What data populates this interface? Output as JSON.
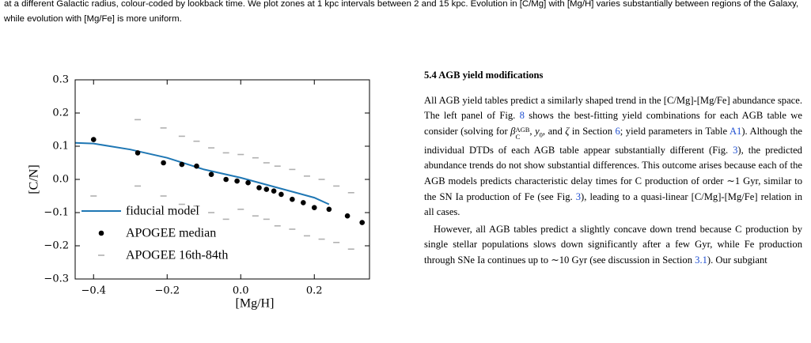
{
  "caption": "at a different Galactic radius, colour-coded by lookback time. We plot zones at 1 kpc intervals between 2 and 15 kpc. Evolution in [C/Mg] with [Mg/H] varies substantially between regions of the Galaxy, while evolution with [Mg/Fe] is more uniform.",
  "chart_data": {
    "type": "line",
    "xlabel": "[Mg/H]",
    "ylabel": "[C/N]",
    "xlim": [
      -0.45,
      0.35
    ],
    "ylim": [
      -0.3,
      0.3
    ],
    "xticks": [
      {
        "value": -0.4,
        "label": "−0.4"
      },
      {
        "value": -0.2,
        "label": "−0.2"
      },
      {
        "value": 0.0,
        "label": "0.0"
      },
      0.2
    ],
    "yticks": [
      {
        "value": -0.3,
        "label": "−0.3"
      },
      {
        "value": -0.2,
        "label": "−0.2"
      },
      {
        "value": -0.1,
        "label": "−0.1"
      },
      {
        "value": 0.0,
        "label": "0.0"
      },
      0.1,
      0.2,
      0.3
    ],
    "legend": "lower left",
    "series": [
      {
        "name": "fiducial model",
        "type": "line",
        "color": "#1f77b4",
        "x": [
          -0.45,
          -0.4,
          -0.3,
          -0.2,
          -0.1,
          0.0,
          0.1,
          0.2,
          0.24
        ],
        "values": [
          0.11,
          0.108,
          0.09,
          0.065,
          0.03,
          0.005,
          -0.025,
          -0.055,
          -0.075
        ]
      },
      {
        "name": "APOGEE median",
        "type": "scatter",
        "color": "#000000",
        "x": [
          -0.4,
          -0.28,
          -0.21,
          -0.16,
          -0.12,
          -0.08,
          -0.04,
          -0.01,
          0.02,
          0.05,
          0.07,
          0.09,
          0.11,
          0.14,
          0.17,
          0.2,
          0.24,
          0.29,
          0.33
        ],
        "values": [
          0.12,
          0.08,
          0.05,
          0.045,
          0.04,
          0.015,
          0.0,
          -0.005,
          -0.01,
          -0.025,
          -0.03,
          -0.035,
          -0.045,
          -0.06,
          -0.07,
          -0.085,
          -0.09,
          -0.11,
          -0.13
        ]
      },
      {
        "name": "APOGEE 16th-84th",
        "type": "range",
        "color": "#b0b0b0",
        "x": [
          -0.4,
          -0.28,
          -0.21,
          -0.16,
          -0.12,
          -0.08,
          -0.04,
          0.0,
          0.04,
          0.07,
          0.1,
          0.14,
          0.18,
          0.22,
          0.26,
          0.3
        ],
        "high": [
          null,
          0.18,
          0.155,
          0.13,
          0.115,
          0.095,
          0.08,
          0.075,
          0.065,
          0.05,
          0.04,
          0.03,
          0.01,
          0.0,
          -0.02,
          -0.04
        ],
        "low": [
          -0.05,
          -0.02,
          -0.05,
          -0.075,
          -0.08,
          -0.1,
          -0.12,
          -0.09,
          -0.11,
          -0.12,
          -0.14,
          -0.15,
          -0.17,
          -0.18,
          -0.19,
          -0.21
        ]
      }
    ]
  },
  "section": {
    "heading": "5.4  AGB yield modifications",
    "paragraphs": [
      [
        "All AGB yield tables predict a similarly shaped trend in the [C/Mg]-[Mg/Fe] abundance space. The left panel of Fig. ",
        "8",
        " shows the best-fitting yield combinations for each AGB table we consider (solving for ",
        "β",
        "C",
        "AGB",
        ", ",
        "y",
        "0",
        ", and ",
        "ζ",
        " in Section ",
        "6",
        "; yield parameters in Table ",
        "A1",
        "). Although the individual DTDs of each AGB table appear substantially different (Fig. ",
        "3",
        "), the predicted abundance trends do not show substantial differences. This outcome arises because each of the AGB models predicts characteristic delay times for C production of order ∼1 Gyr, similar to the SN Ia production of Fe (see Fig. ",
        "3",
        "), leading to a quasi-linear [C/Mg]-[Mg/Fe] relation in all cases."
      ],
      [
        "However, all AGB tables predict a slightly concave down trend because C production by single stellar populations slows down significantly after a few Gyr, while Fe production through SNe Ia continues up to ∼10 Gyr (see discussion in Section ",
        "3.1",
        "). Our subgiant"
      ]
    ]
  }
}
